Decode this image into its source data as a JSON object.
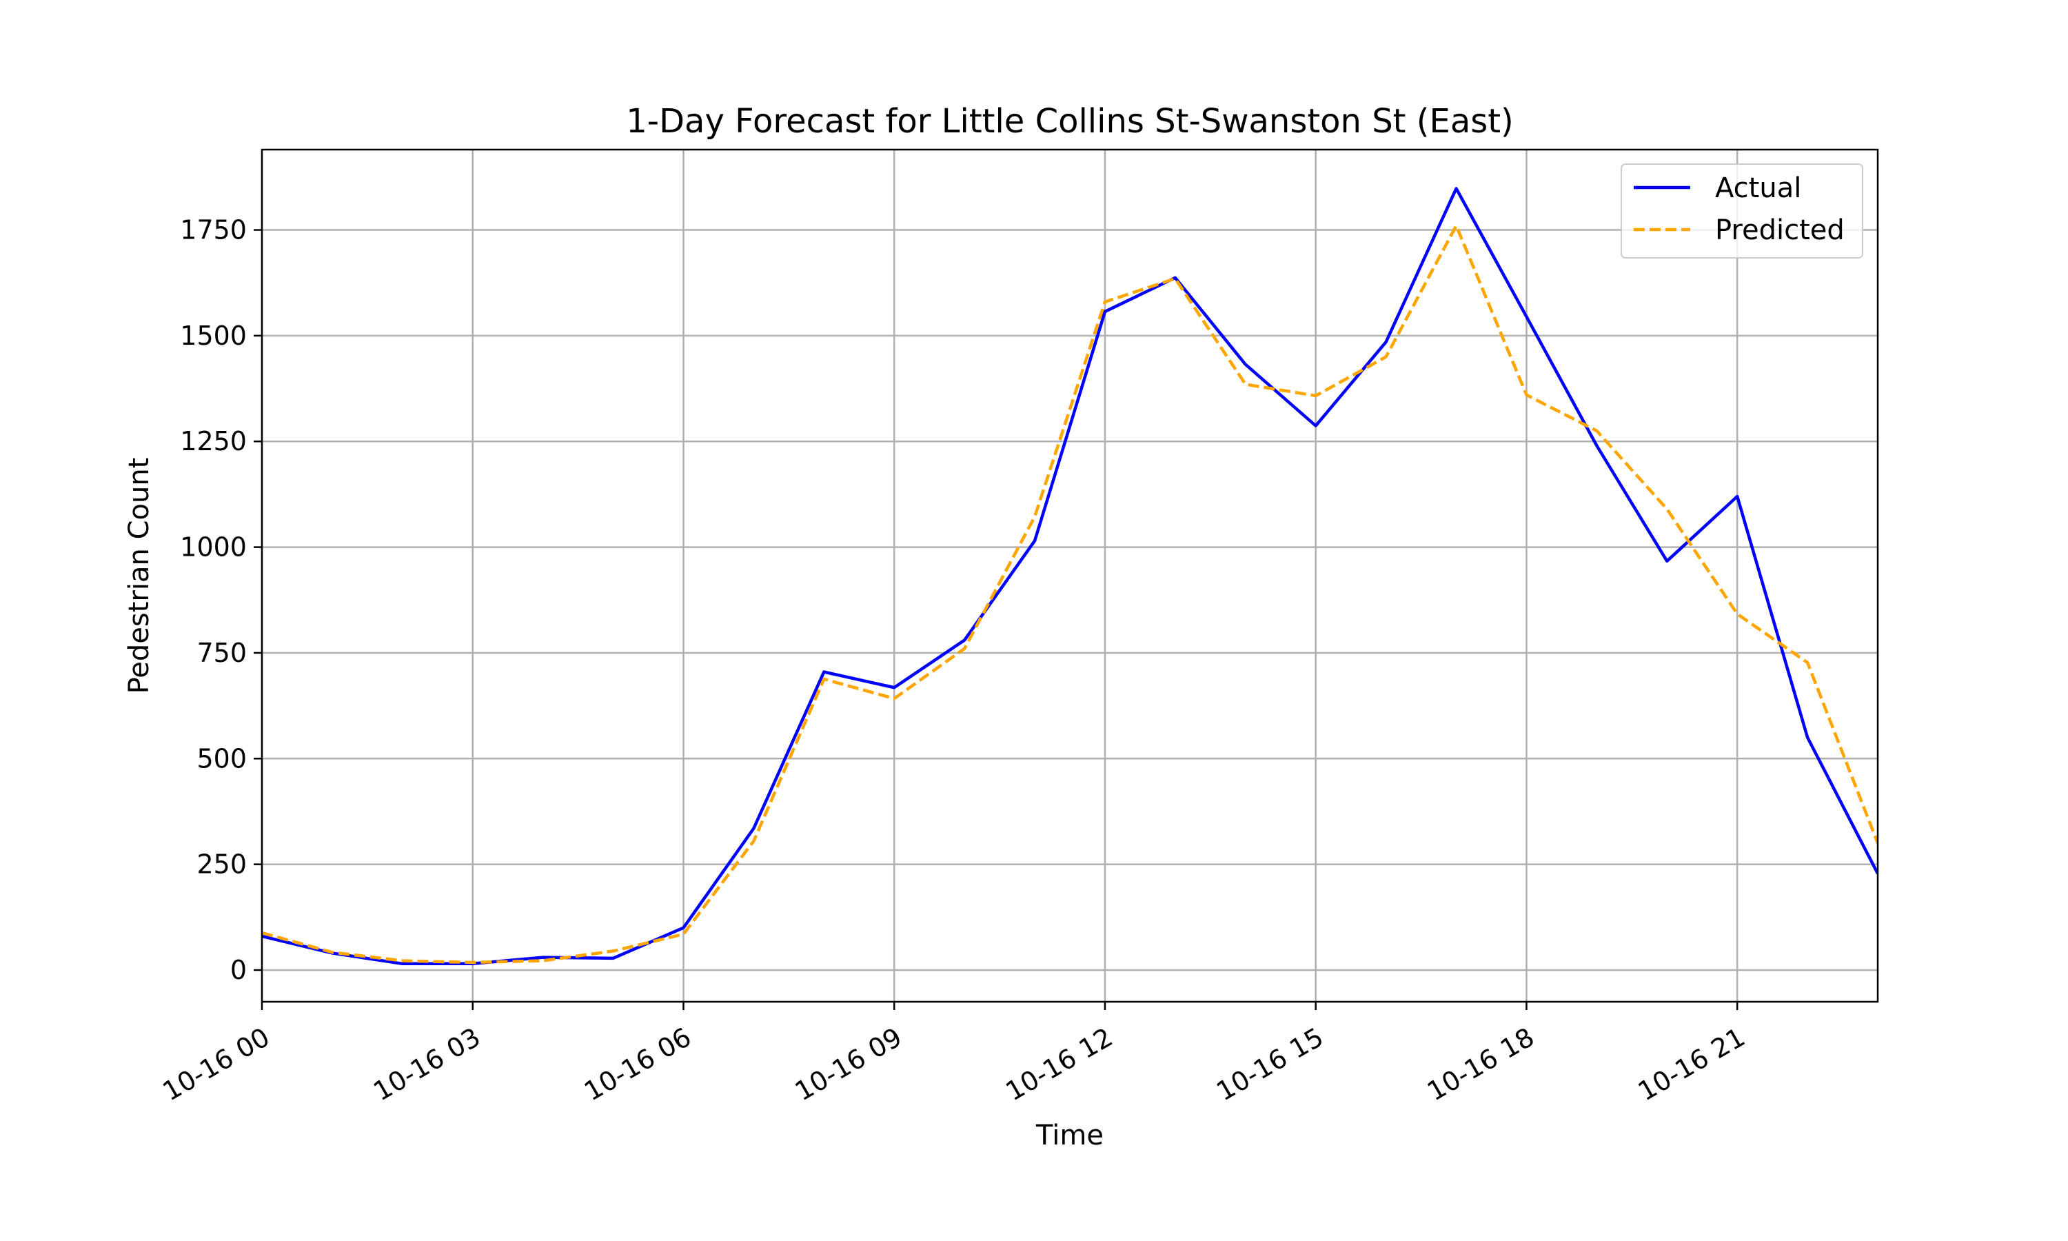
{
  "chart_data": {
    "type": "line",
    "title": "1-Day Forecast for Little Collins St-Swanston St (East)",
    "xlabel": "Time",
    "ylabel": "Pedestrian Count",
    "x": [
      "10-16 00",
      "10-16 01",
      "10-16 02",
      "10-16 03",
      "10-16 04",
      "10-16 05",
      "10-16 06",
      "10-16 07",
      "10-16 08",
      "10-16 09",
      "10-16 10",
      "10-16 11",
      "10-16 12",
      "10-16 13",
      "10-16 14",
      "10-16 15",
      "10-16 16",
      "10-16 17",
      "10-16 18",
      "10-16 19",
      "10-16 20",
      "10-16 21",
      "10-16 22",
      "10-16 23"
    ],
    "x_ticks": [
      "10-16 00",
      "10-16 03",
      "10-16 06",
      "10-16 09",
      "10-16 12",
      "10-16 15",
      "10-16 18",
      "10-16 21"
    ],
    "y_ticks": [
      0,
      250,
      500,
      750,
      1000,
      1250,
      1500,
      1750
    ],
    "xlim": [
      "10-16 00",
      "10-16 23"
    ],
    "ylim": [
      -75,
      1940
    ],
    "grid": true,
    "legend_position": "top-right",
    "series": [
      {
        "name": "Actual",
        "color": "#0000ff",
        "style": "solid",
        "values": [
          80,
          40,
          15,
          15,
          30,
          28,
          100,
          335,
          705,
          668,
          780,
          1015,
          1557,
          1637,
          1432,
          1287,
          1485,
          1848,
          1545,
          1240,
          967,
          1120,
          550,
          228
        ]
      },
      {
        "name": "Predicted",
        "color": "#ffa500",
        "style": "dashed",
        "values": [
          88,
          42,
          22,
          18,
          22,
          45,
          85,
          305,
          688,
          642,
          760,
          1072,
          1580,
          1635,
          1385,
          1358,
          1450,
          1760,
          1360,
          1275,
          1090,
          842,
          727,
          300
        ]
      }
    ]
  }
}
